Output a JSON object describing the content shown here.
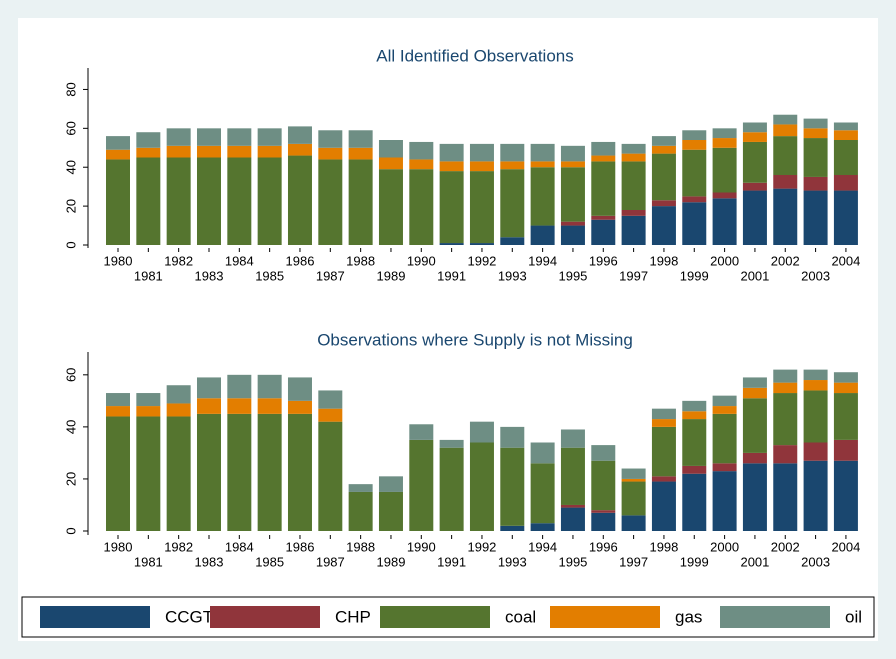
{
  "chart_data": [
    {
      "type": "bar",
      "stacked": true,
      "title": "All Identified Observations",
      "categories": [
        "1980",
        "1981",
        "1982",
        "1983",
        "1984",
        "1985",
        "1986",
        "1987",
        "1988",
        "1989",
        "1990",
        "1991",
        "1992",
        "1993",
        "1994",
        "1995",
        "1996",
        "1997",
        "1998",
        "1999",
        "2000",
        "2001",
        "2002",
        "2003",
        "2004"
      ],
      "series": [
        {
          "name": "CCGT",
          "color": "#1a476f",
          "values": [
            0,
            0,
            0,
            0,
            0,
            0,
            0,
            0,
            0,
            0,
            0,
            1,
            1,
            4,
            10,
            10,
            13,
            15,
            20,
            22,
            24,
            28,
            29,
            28,
            28
          ]
        },
        {
          "name": "CHP",
          "color": "#90353b",
          "values": [
            0,
            0,
            0,
            0,
            0,
            0,
            0,
            0,
            0,
            0,
            0,
            0,
            0,
            0,
            0,
            2,
            2,
            3,
            3,
            3,
            3,
            4,
            7,
            7,
            8
          ]
        },
        {
          "name": "coal",
          "color": "#55752f",
          "values": [
            44,
            45,
            45,
            45,
            45,
            45,
            46,
            44,
            44,
            39,
            39,
            37,
            37,
            35,
            30,
            28,
            28,
            25,
            24,
            24,
            23,
            21,
            20,
            20,
            18
          ]
        },
        {
          "name": "gas",
          "color": "#e37e00",
          "values": [
            5,
            5,
            6,
            6,
            6,
            6,
            6,
            6,
            6,
            6,
            5,
            5,
            5,
            4,
            3,
            3,
            3,
            4,
            4,
            5,
            5,
            5,
            6,
            5,
            5
          ]
        },
        {
          "name": "oil",
          "color": "#6e8e84",
          "values": [
            7,
            8,
            9,
            9,
            9,
            9,
            9,
            9,
            9,
            9,
            9,
            9,
            9,
            9,
            9,
            8,
            7,
            5,
            5,
            5,
            5,
            5,
            5,
            5,
            4
          ]
        }
      ],
      "ylim": [
        0,
        90
      ],
      "yticks": [
        0,
        20,
        40,
        60,
        80
      ]
    },
    {
      "type": "bar",
      "stacked": true,
      "title": "Observations where Supply is not Missing",
      "categories": [
        "1980",
        "1981",
        "1982",
        "1983",
        "1984",
        "1985",
        "1986",
        "1987",
        "1988",
        "1989",
        "1990",
        "1991",
        "1992",
        "1993",
        "1994",
        "1995",
        "1996",
        "1997",
        "1998",
        "1999",
        "2000",
        "2001",
        "2002",
        "2003",
        "2004"
      ],
      "series": [
        {
          "name": "CCGT",
          "color": "#1a476f",
          "values": [
            0,
            0,
            0,
            0,
            0,
            0,
            0,
            0,
            0,
            0,
            0,
            0,
            0,
            2,
            3,
            9,
            7,
            6,
            19,
            22,
            23,
            26,
            26,
            27,
            27
          ]
        },
        {
          "name": "CHP",
          "color": "#90353b",
          "values": [
            0,
            0,
            0,
            0,
            0,
            0,
            0,
            0,
            0,
            0,
            0,
            0,
            0,
            0,
            0,
            1,
            1,
            0,
            2,
            3,
            3,
            4,
            7,
            7,
            8
          ]
        },
        {
          "name": "coal",
          "color": "#55752f",
          "values": [
            44,
            44,
            44,
            45,
            45,
            45,
            45,
            42,
            15,
            15,
            35,
            32,
            34,
            30,
            23,
            22,
            19,
            13,
            19,
            18,
            19,
            21,
            20,
            20,
            18
          ]
        },
        {
          "name": "gas",
          "color": "#e37e00",
          "values": [
            4,
            4,
            5,
            6,
            6,
            6,
            5,
            5,
            0,
            0,
            0,
            0,
            0,
            0,
            0,
            0,
            0,
            1,
            3,
            3,
            3,
            4,
            4,
            4,
            4
          ]
        },
        {
          "name": "oil",
          "color": "#6e8e84",
          "values": [
            5,
            5,
            7,
            8,
            9,
            9,
            9,
            7,
            3,
            6,
            6,
            3,
            8,
            8,
            8,
            7,
            6,
            4,
            4,
            4,
            4,
            4,
            5,
            4,
            4
          ]
        }
      ],
      "ylim": [
        0,
        68
      ],
      "yticks": [
        0,
        20,
        40,
        60
      ]
    }
  ]
}
